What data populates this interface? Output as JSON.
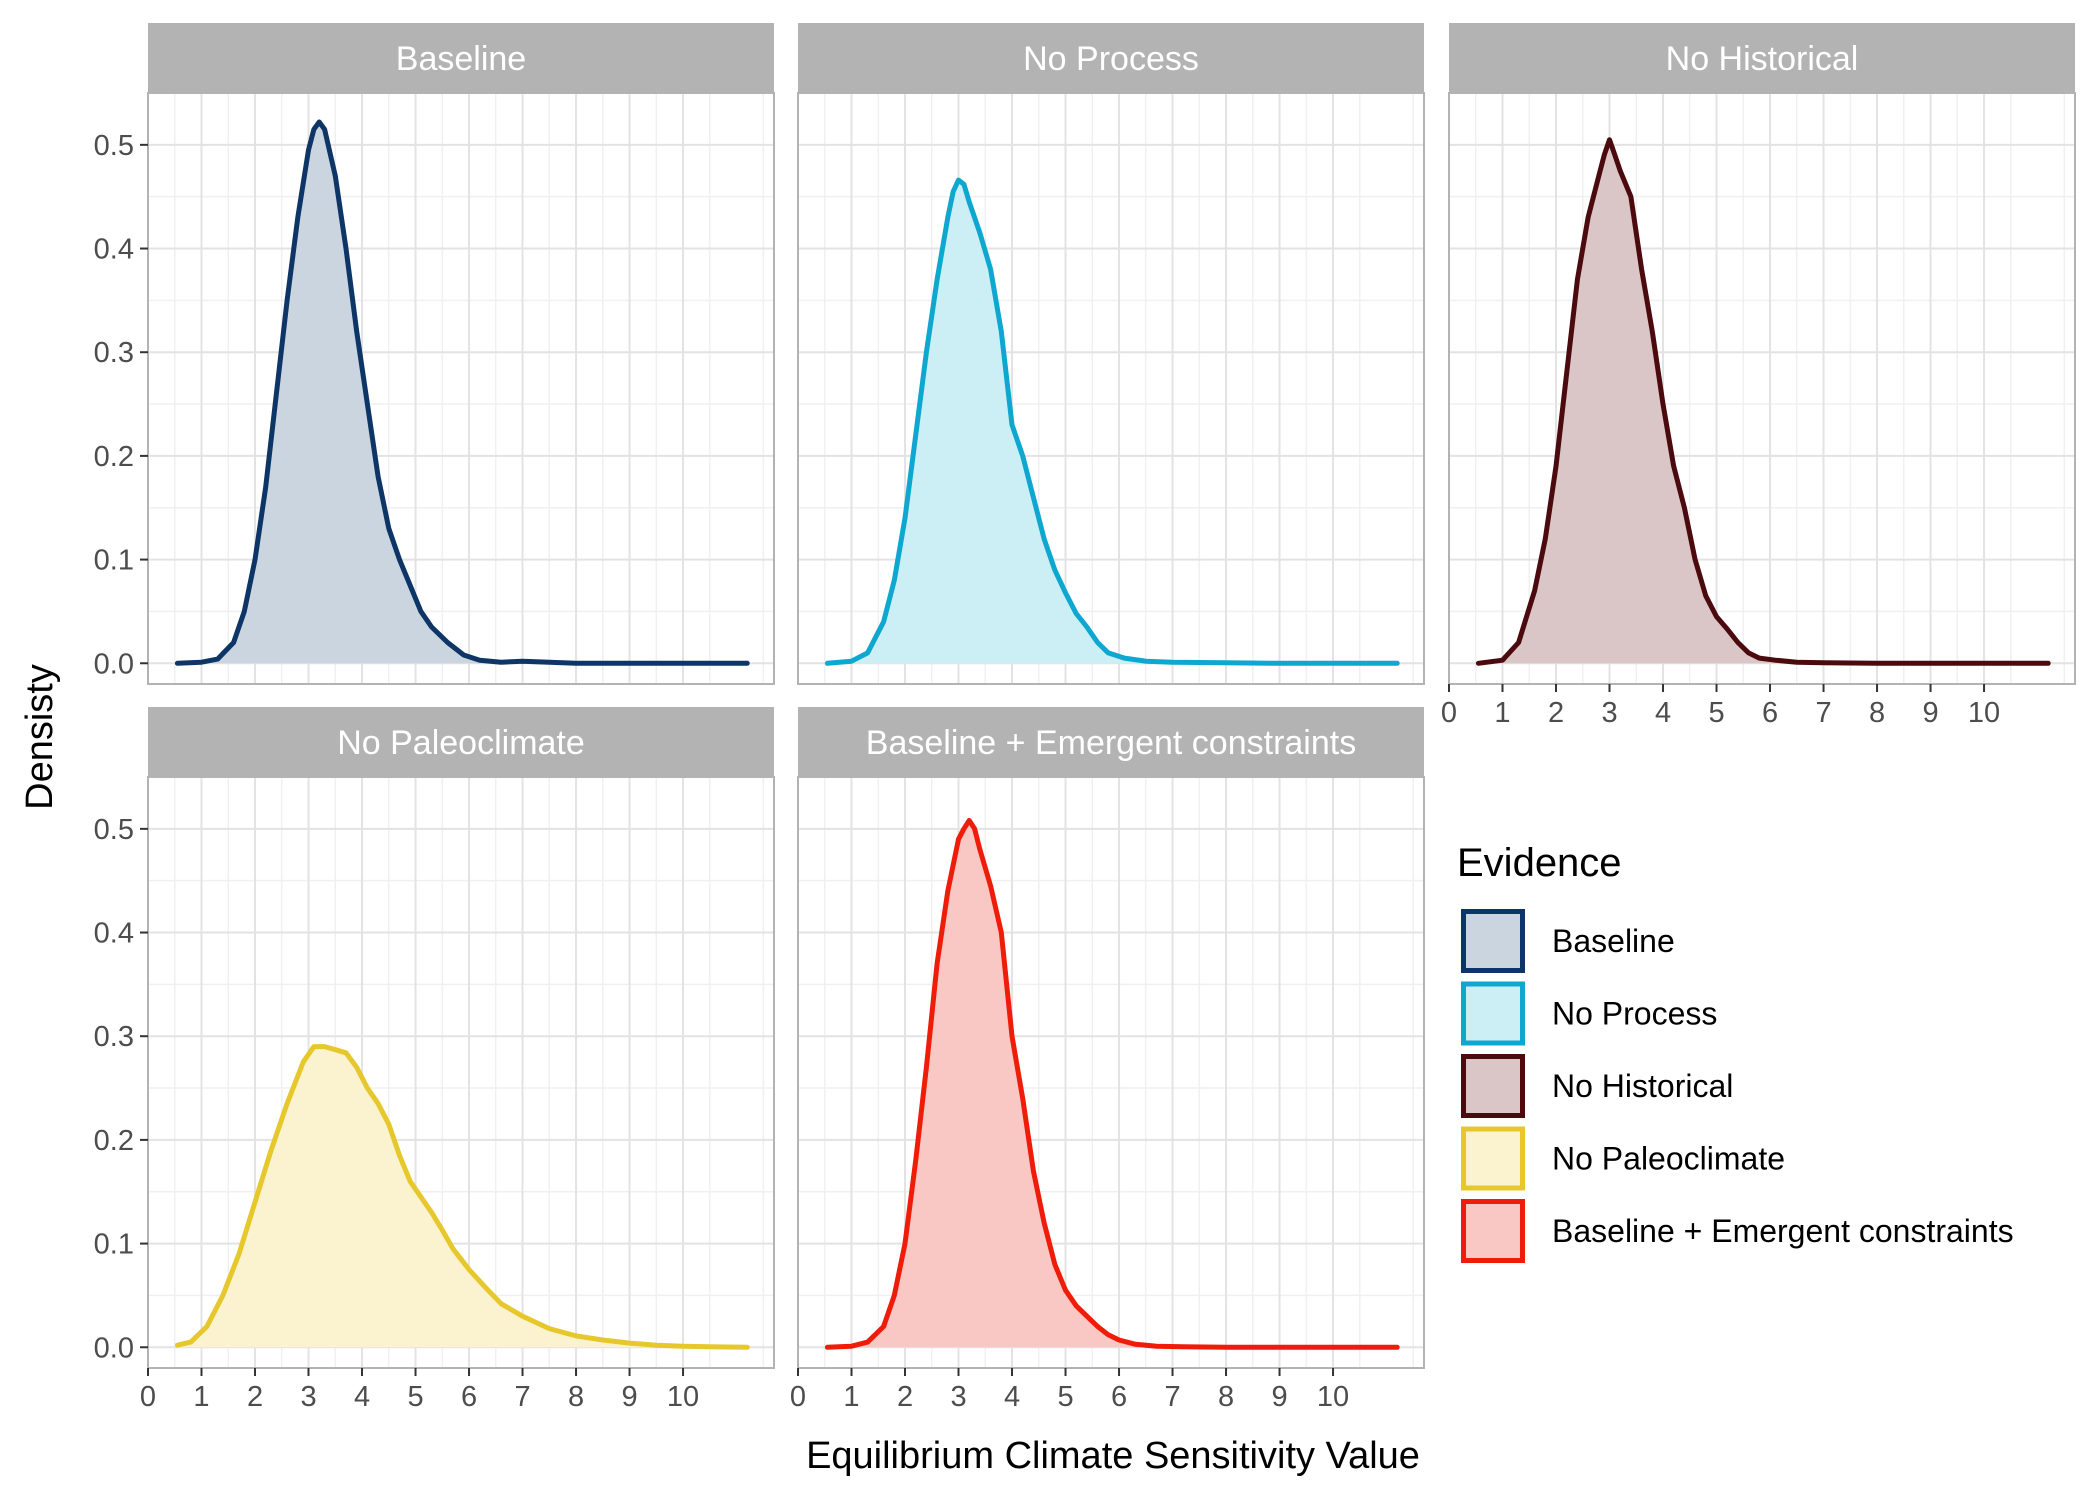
{
  "chart_data": {
    "type": "area",
    "xlabel": "Equilibrium Climate Sensitivity Value",
    "ylabel": "Densisty",
    "xlim": [
      0,
      11.7
    ],
    "ylim": [
      -0.02,
      0.55
    ],
    "x_ticks": [
      "0",
      "1",
      "2",
      "3",
      "4",
      "5",
      "6",
      "7",
      "8",
      "9",
      "10"
    ],
    "y_ticks": [
      "0.0",
      "0.1",
      "0.2",
      "0.3",
      "0.4",
      "0.5"
    ],
    "grid": true,
    "legend": {
      "title": "Evidence",
      "position": "right",
      "entries": [
        "Baseline",
        "No Process",
        "No Historical",
        "No Paleoclimate",
        "Baseline + Emergent constraints"
      ]
    },
    "series": [
      {
        "name": "Baseline",
        "line_color": "#0d3566",
        "fill_color": "#cbd5e0",
        "x": [
          0.55,
          1.0,
          1.3,
          1.6,
          1.8,
          2.0,
          2.2,
          2.4,
          2.6,
          2.8,
          3.0,
          3.1,
          3.2,
          3.3,
          3.5,
          3.7,
          3.9,
          4.1,
          4.3,
          4.5,
          4.7,
          4.9,
          5.1,
          5.3,
          5.6,
          5.9,
          6.2,
          6.6,
          7.0,
          8.0,
          9.0,
          10.0,
          11.2
        ],
        "y": [
          0.0,
          0.001,
          0.004,
          0.02,
          0.05,
          0.1,
          0.17,
          0.26,
          0.35,
          0.43,
          0.495,
          0.515,
          0.522,
          0.515,
          0.47,
          0.4,
          0.32,
          0.25,
          0.18,
          0.13,
          0.1,
          0.075,
          0.05,
          0.035,
          0.02,
          0.008,
          0.003,
          0.001,
          0.002,
          0.0,
          0.0,
          0.0,
          0.0
        ]
      },
      {
        "name": "No Process",
        "line_color": "#0ea7cf",
        "fill_color": "#cceef5",
        "x": [
          0.55,
          1.0,
          1.3,
          1.6,
          1.8,
          2.0,
          2.2,
          2.4,
          2.6,
          2.8,
          2.9,
          3.0,
          3.1,
          3.2,
          3.4,
          3.6,
          3.8,
          4.0,
          4.2,
          4.4,
          4.6,
          4.8,
          5.0,
          5.2,
          5.4,
          5.6,
          5.8,
          6.1,
          6.5,
          7.0,
          8.0,
          9.0,
          10.0,
          11.2
        ],
        "y": [
          0.0,
          0.002,
          0.01,
          0.04,
          0.08,
          0.14,
          0.22,
          0.3,
          0.37,
          0.43,
          0.455,
          0.466,
          0.462,
          0.445,
          0.415,
          0.38,
          0.32,
          0.23,
          0.2,
          0.16,
          0.12,
          0.09,
          0.068,
          0.048,
          0.035,
          0.02,
          0.01,
          0.005,
          0.002,
          0.001,
          0.0005,
          0.0,
          0.0,
          0.0
        ]
      },
      {
        "name": "No Historical",
        "line_color": "#4b0a0e",
        "fill_color": "#dac6c6",
        "x": [
          0.55,
          1.0,
          1.3,
          1.6,
          1.8,
          2.0,
          2.2,
          2.4,
          2.6,
          2.8,
          2.9,
          3.0,
          3.1,
          3.2,
          3.4,
          3.6,
          3.8,
          4.0,
          4.2,
          4.4,
          4.6,
          4.8,
          5.0,
          5.2,
          5.4,
          5.6,
          5.8,
          6.1,
          6.5,
          7.0,
          8.0,
          9.0,
          10.0,
          11.2
        ],
        "y": [
          0.0,
          0.003,
          0.02,
          0.07,
          0.12,
          0.19,
          0.28,
          0.37,
          0.43,
          0.47,
          0.49,
          0.505,
          0.49,
          0.475,
          0.45,
          0.38,
          0.32,
          0.25,
          0.19,
          0.15,
          0.1,
          0.065,
          0.045,
          0.033,
          0.02,
          0.01,
          0.005,
          0.003,
          0.001,
          0.0005,
          0.0,
          0.0,
          0.0,
          0.0
        ]
      },
      {
        "name": "No Paleoclimate",
        "line_color": "#e6c82d",
        "fill_color": "#fbf3cf",
        "x": [
          0.55,
          0.8,
          1.1,
          1.4,
          1.7,
          2.0,
          2.3,
          2.6,
          2.9,
          3.1,
          3.3,
          3.5,
          3.7,
          3.9,
          4.1,
          4.3,
          4.5,
          4.7,
          4.9,
          5.1,
          5.3,
          5.5,
          5.7,
          6.0,
          6.3,
          6.6,
          7.0,
          7.5,
          8.0,
          8.5,
          9.0,
          9.5,
          10.0,
          10.5,
          11.2
        ],
        "y": [
          0.002,
          0.005,
          0.02,
          0.05,
          0.09,
          0.14,
          0.19,
          0.235,
          0.275,
          0.29,
          0.29,
          0.287,
          0.284,
          0.27,
          0.25,
          0.235,
          0.215,
          0.185,
          0.16,
          0.145,
          0.13,
          0.113,
          0.095,
          0.075,
          0.058,
          0.042,
          0.03,
          0.018,
          0.011,
          0.007,
          0.004,
          0.002,
          0.001,
          0.0005,
          0.0
        ]
      },
      {
        "name": "Baseline + Emergent constraints",
        "line_color": "#ef1c0a",
        "fill_color": "#f9c8c4",
        "x": [
          0.55,
          1.0,
          1.3,
          1.6,
          1.8,
          2.0,
          2.2,
          2.4,
          2.6,
          2.8,
          3.0,
          3.1,
          3.2,
          3.3,
          3.4,
          3.6,
          3.8,
          4.0,
          4.2,
          4.4,
          4.6,
          4.8,
          5.0,
          5.2,
          5.4,
          5.6,
          5.8,
          6.0,
          6.3,
          6.7,
          7.2,
          8.0,
          9.0,
          10.0,
          11.2
        ],
        "y": [
          0.0,
          0.001,
          0.005,
          0.02,
          0.05,
          0.1,
          0.18,
          0.27,
          0.37,
          0.44,
          0.49,
          0.5,
          0.508,
          0.5,
          0.48,
          0.445,
          0.4,
          0.3,
          0.24,
          0.17,
          0.12,
          0.08,
          0.055,
          0.04,
          0.03,
          0.02,
          0.012,
          0.007,
          0.003,
          0.001,
          0.0005,
          0.0,
          0.0,
          0.0,
          0.0
        ]
      }
    ]
  }
}
